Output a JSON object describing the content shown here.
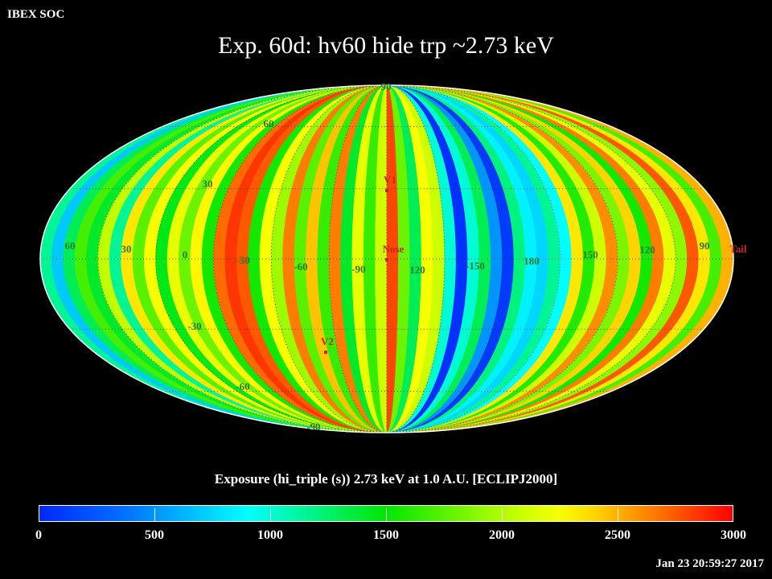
{
  "header": {
    "corner_label": "IBEX SOC",
    "title": "Exp.   60d: hv60 hide trp ~2.73 keV"
  },
  "footer": {
    "subtitle": "Exposure (hi_triple (s))  2.73 keV at 1.0 A.U. [ECLIPJ2000]",
    "timestamp": "Jan 23 20:59:27 2017"
  },
  "colors": {
    "background": "#000000",
    "marker": "#cc2222",
    "grid_label": "#2a7a2a"
  },
  "chart_data": {
    "type": "heatmap",
    "projection": "mollweide",
    "title": "Exp.   60d: hv60 hide trp ~2.73 keV",
    "xlabel": "",
    "ylabel": "",
    "colorbar": {
      "label": "Exposure (hi_triple (s))  2.73 keV at 1.0 A.U. [ECLIPJ2000]",
      "range": [
        0,
        3000
      ],
      "ticks": [
        0,
        500,
        1000,
        1500,
        2000,
        2500,
        3000
      ],
      "colormap": "rainbow (blue-cyan-green-yellow-red)"
    },
    "longitude_labels": [
      "60",
      "30",
      "0",
      "-30",
      "-60",
      "-90",
      "120",
      "-150",
      "180",
      "150",
      "120",
      "90"
    ],
    "latitude_labels": [
      "90",
      "60",
      "30",
      "-30",
      "-60",
      "-90"
    ],
    "center_longitude": 90,
    "strip_width_deg": 6,
    "strip_exposure_s": [
      1150,
      700,
      1300,
      1700,
      1400,
      2050,
      1150,
      2350,
      1750,
      2250,
      1450,
      2200,
      1800,
      2300,
      1550,
      2700,
      2850,
      2750,
      1550,
      2250,
      1950,
      2650,
      1750,
      2450,
      1650,
      2650,
      1400,
      2200,
      1650,
      2100,
      2800,
      1800,
      1300,
      2250,
      2100,
      1000,
      50,
      1000,
      1300,
      500,
      100,
      1200,
      850,
      750,
      1150,
      900,
      2350,
      1600,
      2100,
      2600,
      1850,
      2400,
      1550,
      2650,
      2200,
      1900,
      2750,
      2350,
      1700,
      2500,
      1800,
      2350,
      2800,
      1500,
      2350,
      2100,
      1700,
      2350,
      1550,
      2450,
      1950,
      2150,
      1500,
      2350,
      1800,
      200,
      1850,
      1450,
      2000,
      1550,
      1300,
      2050,
      1150,
      1750,
      1400,
      1050,
      1300,
      800,
      1550,
      1800,
      1700,
      100,
      900,
      700,
      1200,
      600,
      150,
      650,
      1100,
      650,
      250,
      600,
      850,
      500,
      700,
      450,
      300,
      400,
      600,
      350,
      250,
      300,
      400,
      600,
      500,
      700,
      800,
      1000,
      750,
      1100,
      1300,
      1200,
      900,
      1400,
      1600,
      1300,
      1000,
      1500,
      1700,
      1100,
      1450,
      1900,
      1350,
      1600,
      1250,
      1800
    ],
    "markers": [
      {
        "label": "V1",
        "lon": 255,
        "lat": 35
      },
      {
        "label": "V2",
        "lon": 289,
        "lat": -32
      },
      {
        "label": "Nose",
        "lon": 255,
        "lat": 5
      },
      {
        "label": "Tail",
        "lon": 75,
        "lat": -5
      }
    ]
  }
}
